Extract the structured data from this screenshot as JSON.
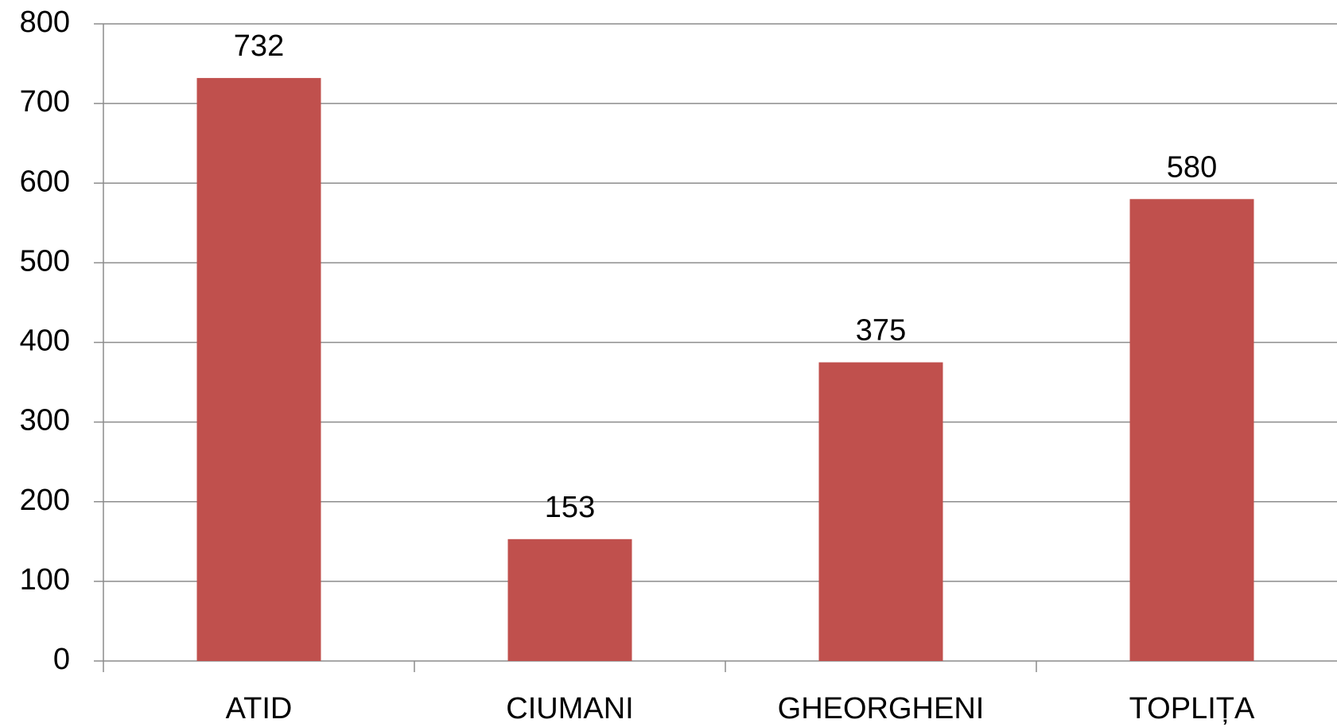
{
  "chart_data": {
    "type": "bar",
    "categories": [
      "ATID",
      "CIUMANI",
      "GHEORGHENI",
      "TOPLIȚA"
    ],
    "values": [
      732,
      153,
      375,
      580
    ],
    "color": "#c0504d",
    "ylim": [
      0,
      800
    ],
    "yticks": [
      0,
      100,
      200,
      300,
      400,
      500,
      600,
      700,
      800
    ],
    "grid": true
  }
}
